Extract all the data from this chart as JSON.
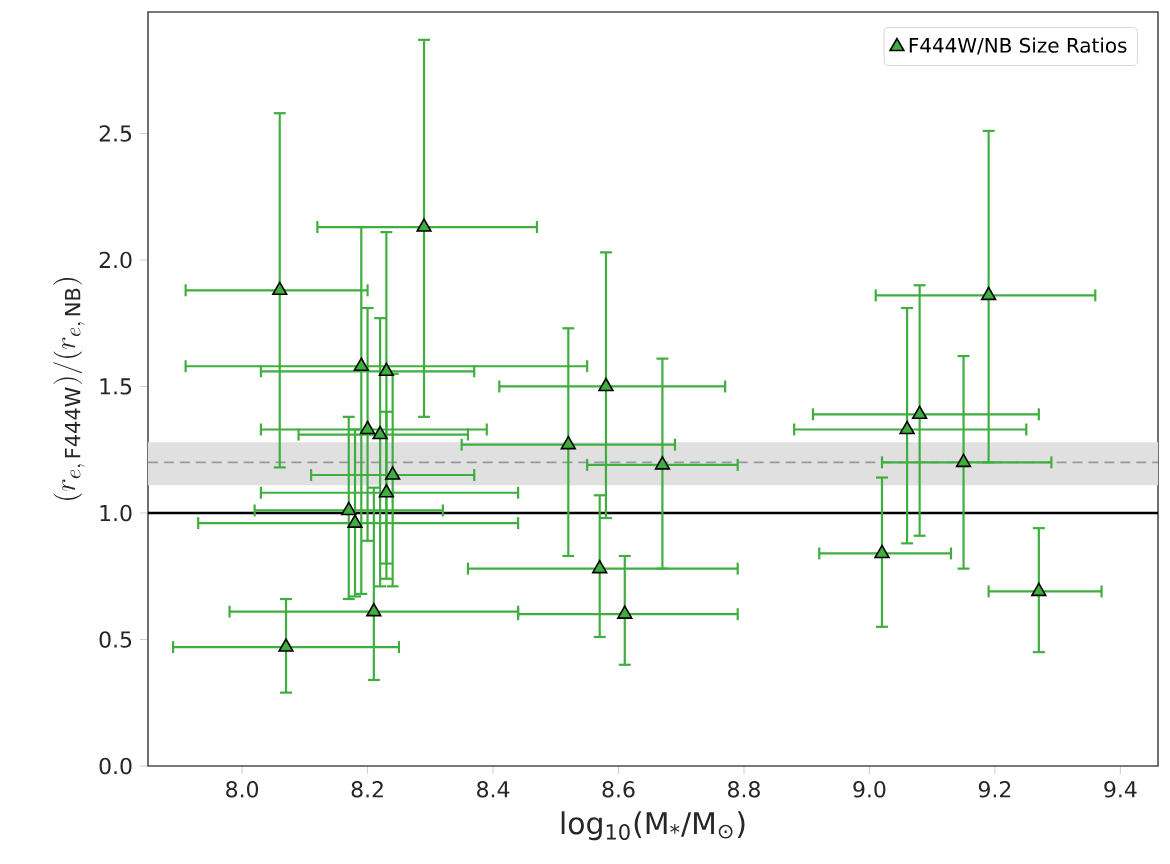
{
  "chart_data": {
    "type": "scatter",
    "xlabel": "log$_{10}$(M$_{*}$/M$_{⊙}$)",
    "ylabel": "(r_{e,\\,\\mathrm{F444W}})/(r_{e,\\,\\mathrm{NB}})",
    "xlim": [
      7.85,
      9.46
    ],
    "ylim": [
      0,
      2.98
    ],
    "xticks": [
      {
        "value": 8,
        "label": "8.0"
      },
      {
        "value": 8.2,
        "label": "8.2"
      },
      {
        "value": 8.4,
        "label": "8.4"
      },
      {
        "value": 8.6,
        "label": "8.6"
      },
      {
        "value": 8.8,
        "label": "8.8"
      },
      {
        "value": 9,
        "label": "9.0"
      },
      {
        "value": 9.2,
        "label": "9.2"
      },
      {
        "value": 9.4,
        "label": "9.4"
      }
    ],
    "yticks": [
      {
        "value": 0,
        "label": "0.0"
      },
      0.5,
      {
        "value": 1,
        "label": "1.0"
      },
      1.5,
      {
        "value": 2,
        "label": "2.0"
      },
      2.5
    ],
    "marker": "triangle",
    "legend": "top right",
    "bands": [
      {
        "axis": "y",
        "from": 1.11,
        "to": 1.28,
        "color": "#e0e0e0"
      }
    ],
    "ref_lines": [
      {
        "axis": "y",
        "value": 1.0,
        "color": "#000000",
        "line_style": "solid"
      },
      {
        "axis": "y",
        "value": 1.2,
        "color": "#999999",
        "line_style": "dashed"
      }
    ],
    "series": [
      {
        "name": "F444W/NB Size Ratios",
        "color": "#3fae3f",
        "x": [
          8.06,
          8.07,
          8.17,
          8.18,
          8.19,
          8.2,
          8.21,
          8.22,
          8.23,
          8.23,
          8.24,
          8.29,
          8.52,
          8.57,
          8.58,
          8.61,
          8.67,
          9.02,
          9.06,
          9.08,
          9.15,
          9.19,
          9.27
        ],
        "values": [
          1.88,
          0.47,
          1.01,
          0.96,
          1.58,
          1.33,
          0.61,
          1.31,
          1.56,
          1.08,
          1.15,
          2.13,
          1.27,
          0.78,
          1.5,
          0.6,
          1.19,
          0.84,
          1.33,
          1.39,
          1.2,
          1.86,
          0.69
        ],
        "errors": [
          [
            1.18,
            2.58
          ],
          [
            0.29,
            0.66
          ],
          [
            0.66,
            1.38
          ],
          [
            0.67,
            1.33
          ],
          [
            0.68,
            2.13
          ],
          [
            0.89,
            1.81
          ],
          [
            0.34,
            1.1
          ],
          [
            0.71,
            1.77
          ],
          [
            0.74,
            2.11
          ],
          [
            0.8,
            1.4
          ],
          [
            0.71,
            1.55
          ],
          [
            1.38,
            2.87
          ],
          [
            0.83,
            1.73
          ],
          [
            0.51,
            1.07
          ],
          [
            0.98,
            2.03
          ],
          [
            0.4,
            0.83
          ],
          [
            0.78,
            1.61
          ],
          [
            0.55,
            1.14
          ],
          [
            0.88,
            1.81
          ],
          [
            0.91,
            1.9
          ],
          [
            0.78,
            1.62
          ],
          [
            1.2,
            2.51
          ],
          [
            0.45,
            0.94
          ]
        ],
        "xerrors": [
          [
            7.91,
            8.2
          ],
          [
            7.89,
            8.25
          ],
          [
            8.02,
            8.32
          ],
          [
            7.93,
            8.44
          ],
          [
            7.91,
            8.55
          ],
          [
            8.03,
            8.39
          ],
          [
            7.98,
            8.44
          ],
          [
            8.09,
            8.36
          ],
          [
            8.03,
            8.37
          ],
          [
            8.03,
            8.44
          ],
          [
            8.11,
            8.37
          ],
          [
            8.12,
            8.47
          ],
          [
            8.35,
            8.69
          ],
          [
            8.36,
            8.79
          ],
          [
            8.41,
            8.77
          ],
          [
            8.44,
            8.79
          ],
          [
            8.55,
            8.79
          ],
          [
            8.92,
            9.13
          ],
          [
            8.88,
            9.25
          ],
          [
            8.91,
            9.27
          ],
          [
            9.02,
            9.29
          ],
          [
            9.01,
            9.36
          ],
          [
            9.19,
            9.37
          ]
        ]
      }
    ]
  }
}
